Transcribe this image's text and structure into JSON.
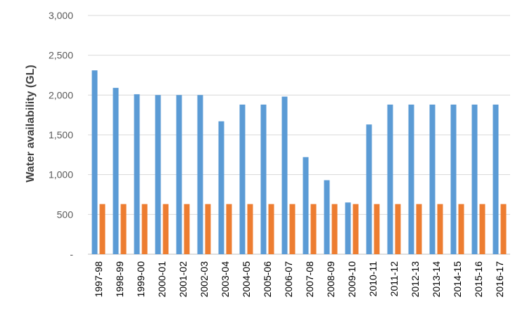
{
  "chart_data": {
    "type": "bar",
    "title": "",
    "xlabel": "",
    "ylabel": "Water availability (GL)",
    "ylim": [
      0,
      3000
    ],
    "yticks": [
      {
        "value": 0,
        "label": "-"
      },
      {
        "value": 500,
        "label": "500"
      },
      {
        "value": 1000,
        "label": "1,000"
      },
      {
        "value": 1500,
        "label": "1,500"
      },
      {
        "value": 2000,
        "label": "2,000"
      },
      {
        "value": 2500,
        "label": "2,500"
      },
      {
        "value": 3000,
        "label": "3,000"
      }
    ],
    "grid": true,
    "legend": "none",
    "categories": [
      "1997-98",
      "1998-99",
      "1999-00",
      "2000-01",
      "2001-02",
      "2002-03",
      "2003-04",
      "2004-05",
      "2005-06",
      "2006-07",
      "2007-08",
      "2008-09",
      "2009-10",
      "2010-11",
      "2011-12",
      "2012-13",
      "2013-14",
      "2014-15",
      "2015-16",
      "2016-17"
    ],
    "series": [
      {
        "color": "#5b9bd5",
        "values": [
          2310,
          2090,
          2010,
          2000,
          2000,
          2000,
          1670,
          1880,
          1880,
          1980,
          1220,
          930,
          650,
          1630,
          1880,
          1880,
          1880,
          1880,
          1880,
          1880
        ]
      },
      {
        "color": "#ed7d31",
        "values": [
          630,
          630,
          630,
          630,
          630,
          630,
          630,
          630,
          630,
          630,
          630,
          630,
          630,
          630,
          630,
          630,
          630,
          630,
          630,
          630
        ]
      }
    ]
  }
}
